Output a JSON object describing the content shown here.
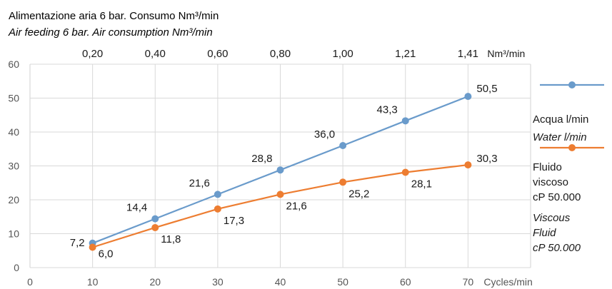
{
  "chart_data": {
    "type": "line",
    "title": "Alimentazione aria 6 bar. Consumo Nm³/min",
    "subtitle": "Air feeding 6 bar. Air consumption Nm³/min",
    "x": [
      10,
      20,
      30,
      40,
      50,
      60,
      70
    ],
    "xlabel": "Cycles/min",
    "xlim": [
      0,
      80
    ],
    "ylim": [
      0,
      60
    ],
    "yticks": [
      0,
      10,
      20,
      30,
      40,
      50,
      60
    ],
    "xticks": [
      0,
      10,
      20,
      30,
      40,
      50,
      60,
      70
    ],
    "top_axis": {
      "unit": "Nm³/min",
      "ticks": [
        "0,20",
        "0,40",
        "0,60",
        "0,80",
        "1,00",
        "1,21",
        "1,41"
      ]
    },
    "grid": true,
    "series": [
      {
        "name_lines": [
          "Acqua l/min"
        ],
        "name_italic_lines": [
          "Water l/min"
        ],
        "color": "#6a9bcb",
        "values": [
          7.2,
          14.4,
          21.6,
          28.8,
          36.0,
          43.3,
          50.5
        ],
        "labels": [
          "7,2",
          "14,4",
          "21,6",
          "28,8",
          "36,0",
          "43,3",
          "50,5"
        ]
      },
      {
        "name_lines": [
          "Fluido",
          "viscoso",
          "cP 50.000"
        ],
        "name_italic_lines": [
          "Viscous",
          "Fluid",
          "cP 50.000"
        ],
        "color": "#ed7d31",
        "values": [
          6.0,
          11.8,
          17.3,
          21.6,
          25.2,
          28.1,
          30.3
        ],
        "labels": [
          "6,0",
          "11,8",
          "17,3",
          "21,6",
          "25,2",
          "28,1",
          "30,3"
        ]
      }
    ]
  }
}
